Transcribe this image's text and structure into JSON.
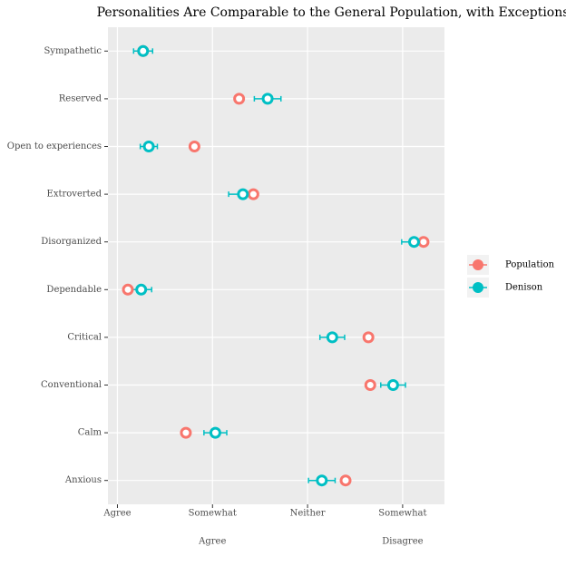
{
  "chart_data": {
    "type": "dot",
    "title": "Personalities Are Comparable to the General Population, with Exceptions",
    "categories": [
      "Sympathetic",
      "Reserved",
      "Open to experiences",
      "Extroverted",
      "Disorganized",
      "Dependable",
      "Critical",
      "Conventional",
      "Calm",
      "Anxious"
    ],
    "series": [
      {
        "name": "Population",
        "color": "#f8766d",
        "values": [
          1.27,
          2.28,
          1.81,
          2.43,
          4.22,
          1.11,
          3.64,
          3.66,
          1.72,
          3.4
        ]
      },
      {
        "name": "Denison",
        "color": "#00bfc4",
        "values": [
          1.27,
          2.58,
          1.33,
          2.32,
          4.12,
          1.25,
          3.26,
          3.9,
          2.03,
          3.15
        ],
        "errors": [
          0.1,
          0.14,
          0.09,
          0.15,
          0.13,
          0.11,
          0.13,
          0.13,
          0.12,
          0.14
        ]
      }
    ],
    "xlim": [
      0.9,
      4.44
    ],
    "xticks": [
      {
        "value": 1,
        "label": "Agree"
      },
      {
        "value": 2,
        "label": "Somewhat",
        "sublabel": "Agree"
      },
      {
        "value": 3,
        "label": "Neither"
      },
      {
        "value": 4,
        "label": "Somewhat",
        "sublabel": "Disagree"
      }
    ],
    "grid": true,
    "legend": "right"
  }
}
